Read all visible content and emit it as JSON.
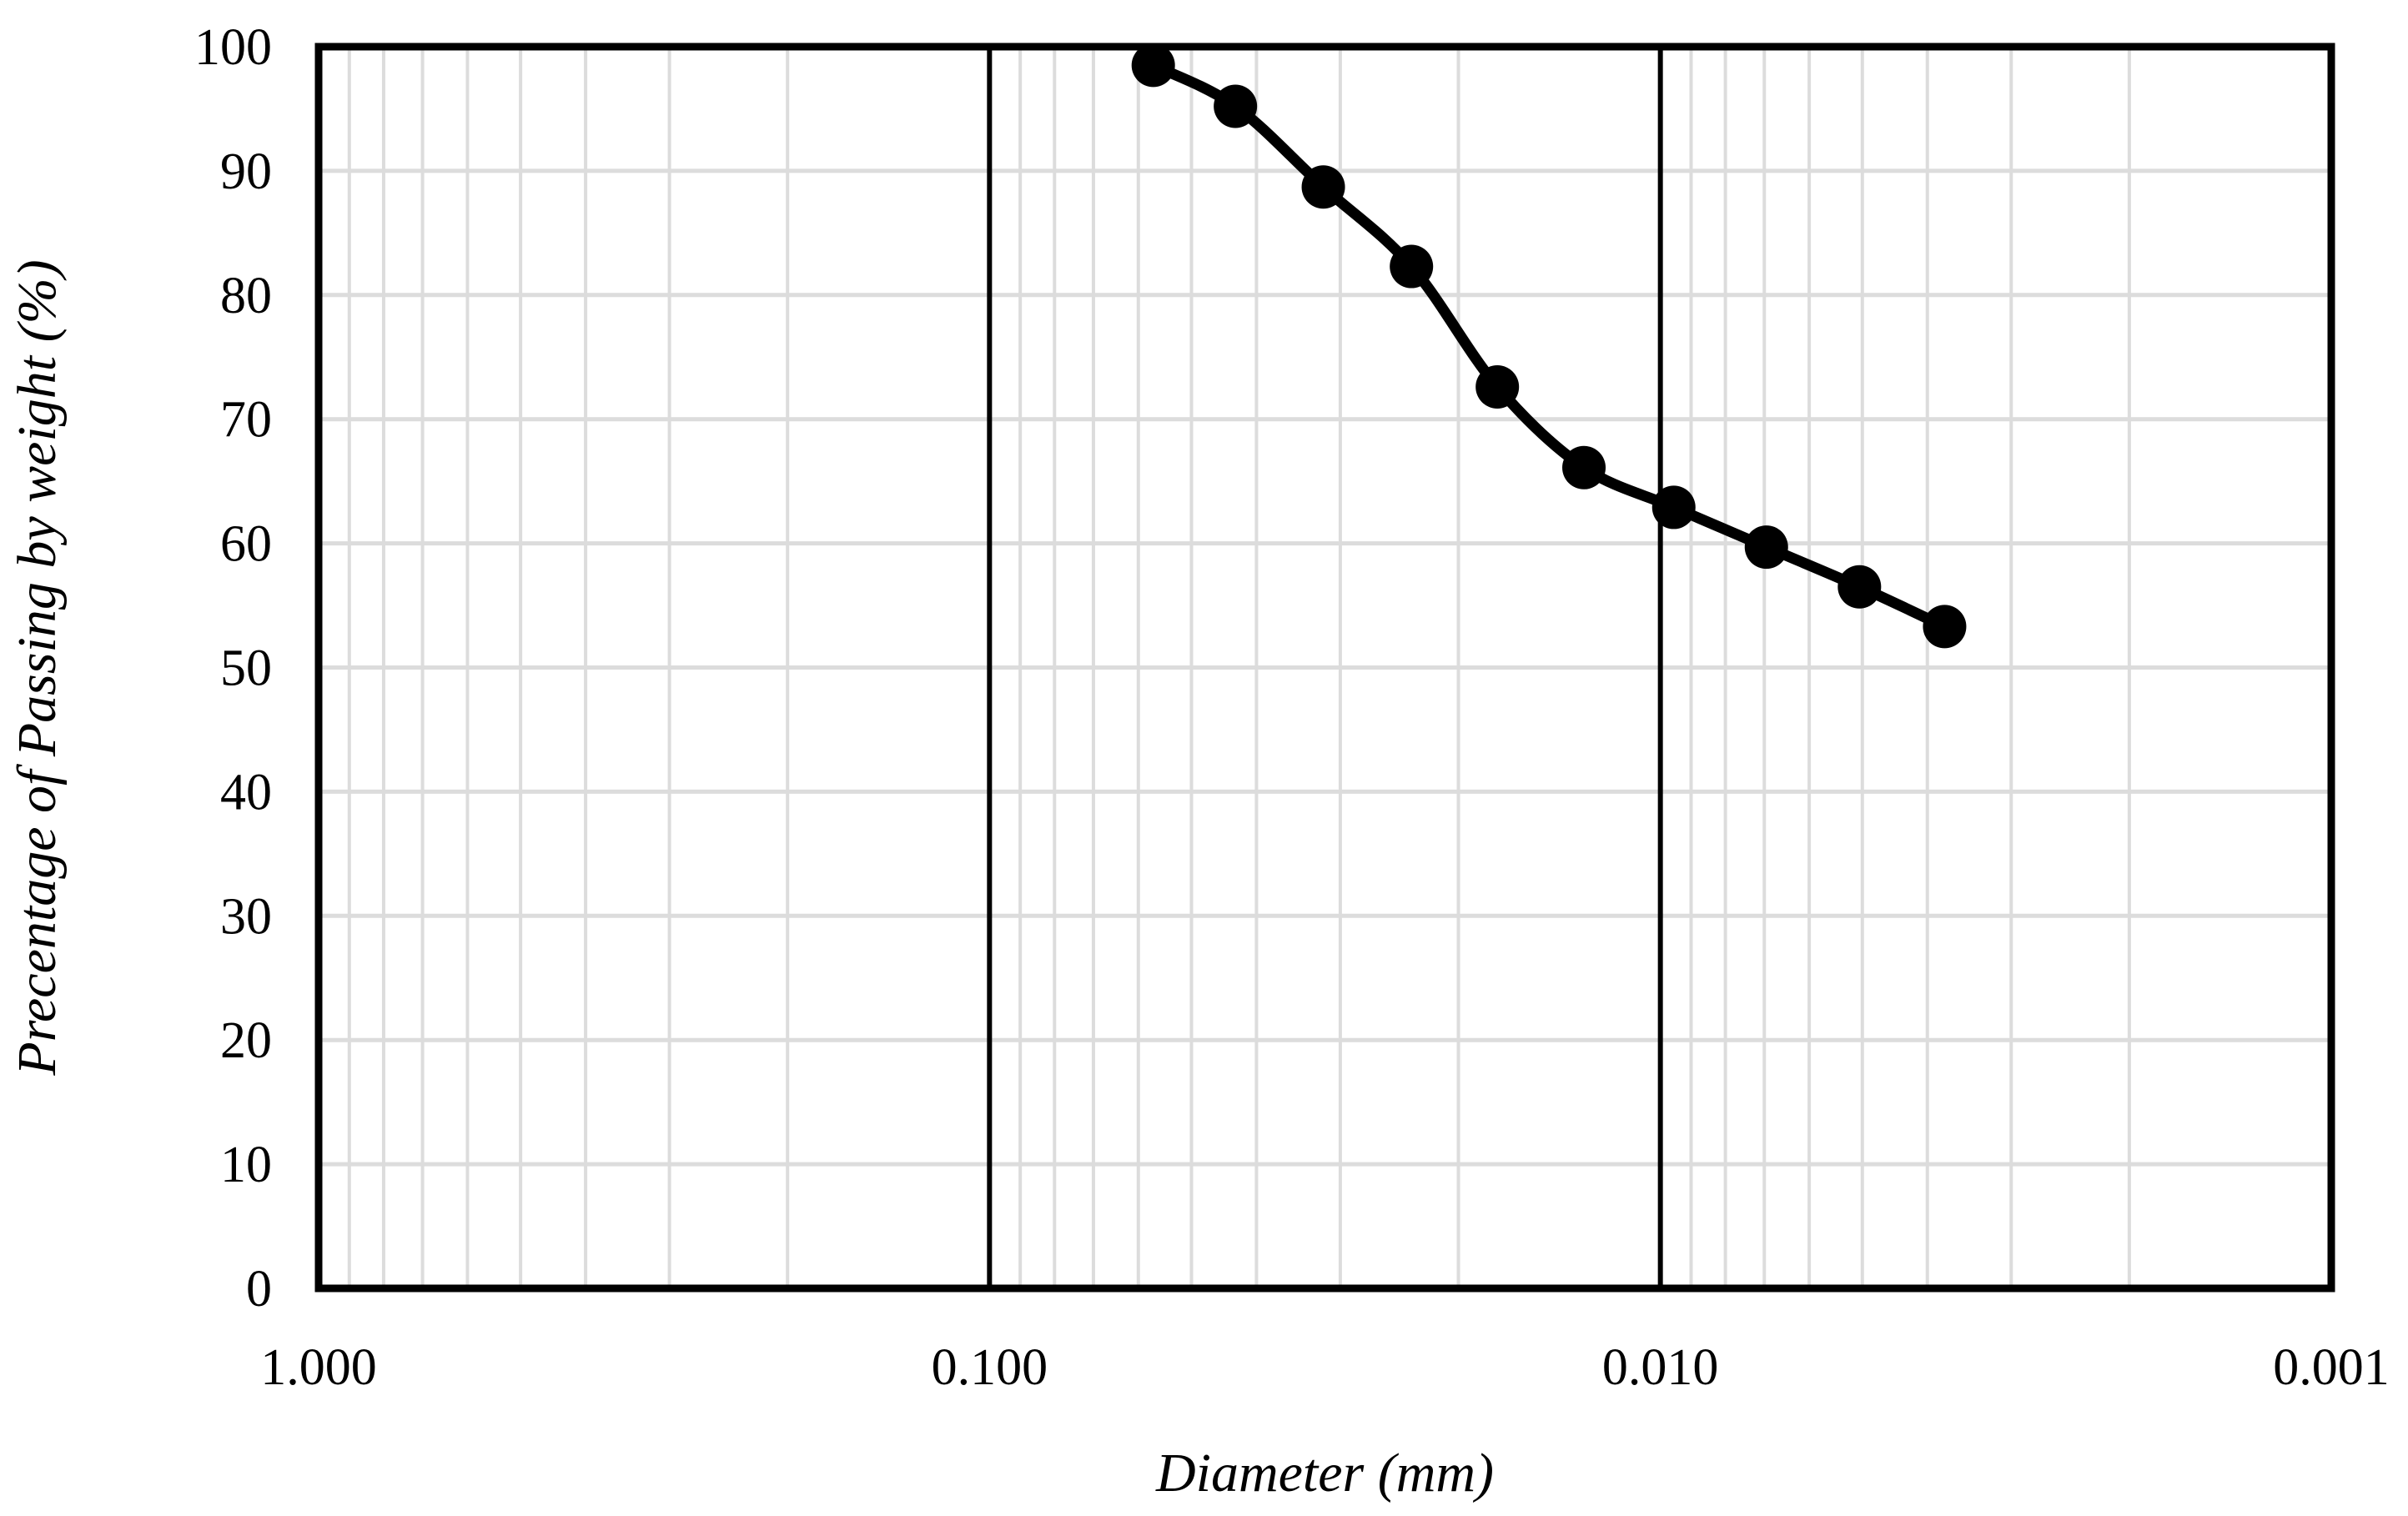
{
  "chart_data": {
    "type": "line",
    "title": "",
    "xlabel": "Diameter (mm)",
    "ylabel": "Precentage of Passing by weight (%)",
    "x_scale": "log",
    "x_reversed": true,
    "xlim": [
      1.0,
      0.001
    ],
    "ylim": [
      0,
      100
    ],
    "x_tick_values": [
      1.0,
      0.1,
      0.01,
      0.001
    ],
    "x_tick_labels": [
      "1.000",
      "0.100",
      "0.010",
      "0.001"
    ],
    "y_tick_values": [
      0,
      10,
      20,
      30,
      40,
      50,
      60,
      70,
      80,
      90,
      100
    ],
    "y_tick_labels": [
      "0",
      "10",
      "20",
      "30",
      "40",
      "50",
      "60",
      "70",
      "80",
      "90",
      "100"
    ],
    "grid": true,
    "legend": "none",
    "series": [
      {
        "x": [
          0.057,
          0.043,
          0.0318,
          0.0235,
          0.0175,
          0.013,
          0.00955,
          0.00695,
          0.00505,
          0.00377
        ],
        "values": [
          98.5,
          95.2,
          88.7,
          82.3,
          72.6,
          66.1,
          62.9,
          59.7,
          56.5,
          53.3
        ]
      }
    ],
    "colors": {
      "line": "#000000",
      "marker": "#000000",
      "grid": "#dcdcdc",
      "frame": "#000000"
    }
  }
}
